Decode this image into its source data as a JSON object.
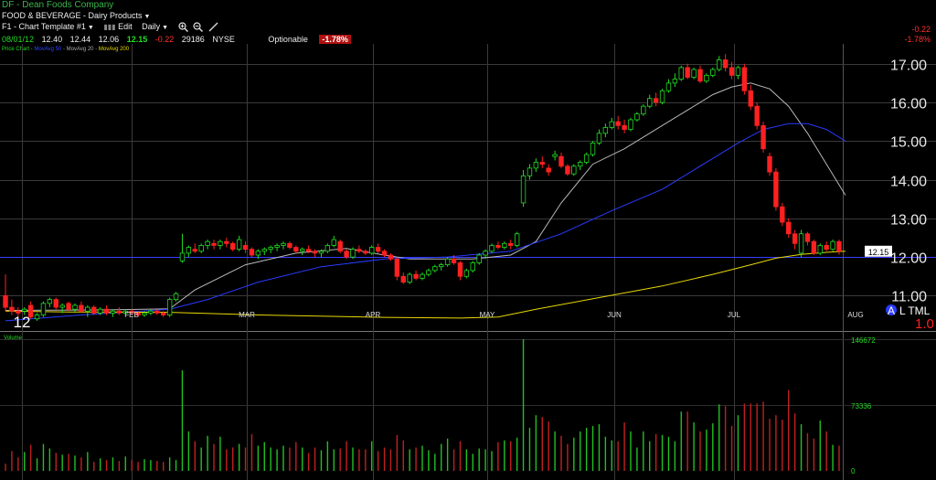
{
  "header": {
    "title": "DF - Dean Foods Company",
    "sector": "FOOD & BEVERAGE - Dairy Products",
    "toolbar": {
      "template": "F1 - Chart Template #1",
      "edit": "Edit",
      "period": "Daily"
    },
    "quote": {
      "date": "08/01/12",
      "open": "12.40",
      "high": "12.44",
      "low": "12.06",
      "last": "12.15",
      "change": "-0.22",
      "volume": "29186",
      "exchange": "NYSE",
      "optionable": "Optionable",
      "change_pct": "-1.78%"
    },
    "right_change": "-0.22",
    "right_change_pct": "-1.78%",
    "legend": {
      "price": "Price Chart -",
      "ma50": "MovAvg 50",
      "ma20": "MovAvg 20",
      "ma200": "MovAvg 200"
    }
  },
  "chart_data": [
    {
      "type": "candlestick",
      "y_ticks": [
        "17.00",
        "16.00",
        "15.00",
        "14.00",
        "13.00",
        "12.00",
        "11.00"
      ],
      "ylim": [
        10.3,
        17.2
      ],
      "x_labels": [
        "12",
        "FEB",
        "MAR",
        "APR",
        "MAY",
        "JUN",
        "JUL",
        "AUG"
      ],
      "last_price_label": "12.15",
      "reference_line": 12.0,
      "corner_labels": {
        "a": "A",
        "ltml": "L TML",
        "ratio": "1.0"
      },
      "ohlc": [
        [
          11.0,
          11.55,
          10.6,
          10.7
        ],
        [
          10.7,
          10.9,
          10.5,
          10.6
        ],
        [
          10.6,
          10.7,
          10.45,
          10.55
        ],
        [
          10.6,
          10.7,
          10.5,
          10.65
        ],
        [
          10.75,
          10.85,
          10.4,
          10.45
        ],
        [
          10.4,
          10.55,
          10.35,
          10.5
        ],
        [
          10.5,
          10.85,
          10.45,
          10.8
        ],
        [
          10.8,
          10.95,
          10.7,
          10.9
        ],
        [
          10.9,
          10.95,
          10.65,
          10.7
        ],
        [
          10.7,
          10.8,
          10.55,
          10.75
        ],
        [
          10.8,
          10.85,
          10.6,
          10.65
        ],
        [
          10.65,
          10.8,
          10.55,
          10.75
        ],
        [
          10.75,
          10.85,
          10.55,
          10.6
        ],
        [
          10.6,
          10.75,
          10.45,
          10.7
        ],
        [
          10.7,
          10.75,
          10.5,
          10.55
        ],
        [
          10.55,
          10.7,
          10.5,
          10.65
        ],
        [
          10.65,
          10.75,
          10.5,
          10.55
        ],
        [
          10.55,
          10.65,
          10.45,
          10.6
        ],
        [
          10.6,
          10.7,
          10.5,
          10.55
        ],
        [
          10.55,
          10.65,
          10.5,
          10.6
        ],
        [
          10.6,
          10.65,
          10.5,
          10.55
        ],
        [
          10.55,
          10.6,
          10.45,
          10.5
        ],
        [
          10.5,
          10.6,
          10.45,
          10.55
        ],
        [
          10.55,
          10.65,
          10.5,
          10.6
        ],
        [
          10.6,
          10.65,
          10.5,
          10.55
        ],
        [
          10.55,
          10.6,
          10.45,
          10.5
        ],
        [
          10.5,
          10.95,
          10.45,
          10.9
        ],
        [
          10.9,
          11.1,
          10.85,
          11.05
        ],
        [
          11.9,
          12.6,
          11.85,
          12.1
        ],
        [
          12.1,
          12.3,
          12.0,
          12.25
        ],
        [
          12.2,
          12.35,
          12.1,
          12.15
        ],
        [
          12.15,
          12.35,
          12.1,
          12.3
        ],
        [
          12.3,
          12.45,
          12.2,
          12.4
        ],
        [
          12.35,
          12.45,
          12.2,
          12.3
        ],
        [
          12.3,
          12.45,
          12.2,
          12.4
        ],
        [
          12.4,
          12.5,
          12.25,
          12.35
        ],
        [
          12.35,
          12.4,
          12.15,
          12.2
        ],
        [
          12.2,
          12.55,
          12.15,
          12.45
        ],
        [
          12.3,
          12.4,
          12.1,
          12.2
        ],
        [
          12.2,
          12.25,
          12.0,
          12.05
        ],
        [
          12.05,
          12.2,
          11.95,
          12.15
        ],
        [
          12.15,
          12.25,
          12.05,
          12.2
        ],
        [
          12.2,
          12.3,
          12.1,
          12.25
        ],
        [
          12.25,
          12.35,
          12.15,
          12.3
        ],
        [
          12.3,
          12.4,
          12.2,
          12.35
        ],
        [
          12.35,
          12.4,
          12.2,
          12.25
        ],
        [
          12.25,
          12.3,
          12.1,
          12.15
        ],
        [
          12.15,
          12.25,
          12.05,
          12.2
        ],
        [
          12.2,
          12.3,
          12.1,
          12.15
        ],
        [
          12.15,
          12.2,
          12.0,
          12.1
        ],
        [
          12.1,
          12.2,
          12.0,
          12.15
        ],
        [
          12.15,
          12.35,
          12.1,
          12.3
        ],
        [
          12.3,
          12.55,
          12.25,
          12.45
        ],
        [
          12.4,
          12.45,
          12.1,
          12.15
        ],
        [
          12.15,
          12.2,
          11.95,
          12.0
        ],
        [
          12.0,
          12.25,
          11.95,
          12.2
        ],
        [
          12.2,
          12.3,
          12.1,
          12.15
        ],
        [
          12.15,
          12.2,
          12.05,
          12.1
        ],
        [
          12.1,
          12.3,
          12.05,
          12.25
        ],
        [
          12.25,
          12.35,
          12.1,
          12.15
        ],
        [
          12.15,
          12.2,
          12.0,
          12.05
        ],
        [
          12.05,
          12.1,
          11.9,
          11.95
        ],
        [
          11.95,
          12.0,
          11.4,
          11.5
        ],
        [
          11.5,
          11.6,
          11.3,
          11.35
        ],
        [
          11.35,
          11.6,
          11.3,
          11.55
        ],
        [
          11.55,
          11.65,
          11.4,
          11.45
        ],
        [
          11.45,
          11.6,
          11.4,
          11.55
        ],
        [
          11.55,
          11.7,
          11.5,
          11.65
        ],
        [
          11.65,
          11.8,
          11.6,
          11.75
        ],
        [
          11.75,
          11.85,
          11.65,
          11.8
        ],
        [
          11.8,
          12.0,
          11.75,
          11.95
        ],
        [
          11.95,
          12.05,
          11.8,
          11.85
        ],
        [
          11.85,
          11.9,
          11.4,
          11.5
        ],
        [
          11.5,
          11.7,
          11.45,
          11.65
        ],
        [
          11.65,
          11.9,
          11.6,
          11.85
        ],
        [
          11.85,
          12.1,
          11.8,
          12.05
        ],
        [
          12.05,
          12.2,
          11.95,
          12.15
        ],
        [
          12.15,
          12.35,
          12.1,
          12.3
        ],
        [
          12.3,
          12.4,
          12.2,
          12.25
        ],
        [
          12.25,
          12.4,
          12.2,
          12.35
        ],
        [
          12.35,
          12.45,
          12.2,
          12.3
        ],
        [
          12.3,
          12.65,
          12.25,
          12.6
        ],
        [
          13.4,
          14.25,
          13.3,
          14.1
        ],
        [
          14.1,
          14.4,
          14.0,
          14.3
        ],
        [
          14.3,
          14.55,
          14.2,
          14.45
        ],
        [
          14.45,
          14.6,
          14.3,
          14.4
        ],
        [
          14.3,
          14.4,
          14.1,
          14.2
        ],
        [
          14.6,
          14.75,
          14.5,
          14.65
        ],
        [
          14.6,
          14.7,
          14.3,
          14.35
        ],
        [
          14.35,
          14.4,
          14.1,
          14.15
        ],
        [
          14.15,
          14.4,
          14.1,
          14.35
        ],
        [
          14.35,
          14.5,
          14.25,
          14.45
        ],
        [
          14.45,
          14.7,
          14.4,
          14.65
        ],
        [
          14.65,
          15.0,
          14.6,
          14.95
        ],
        [
          14.95,
          15.3,
          14.9,
          15.2
        ],
        [
          15.2,
          15.45,
          15.1,
          15.35
        ],
        [
          15.35,
          15.6,
          15.3,
          15.5
        ],
        [
          15.5,
          15.65,
          15.3,
          15.4
        ],
        [
          15.4,
          15.55,
          15.2,
          15.3
        ],
        [
          15.3,
          15.6,
          15.25,
          15.55
        ],
        [
          15.55,
          15.75,
          15.5,
          15.7
        ],
        [
          15.7,
          15.95,
          15.65,
          15.9
        ],
        [
          15.9,
          16.2,
          15.85,
          16.1
        ],
        [
          16.1,
          16.25,
          15.9,
          16.0
        ],
        [
          16.0,
          16.35,
          15.95,
          16.3
        ],
        [
          16.3,
          16.6,
          16.25,
          16.5
        ],
        [
          16.5,
          16.75,
          16.4,
          16.6
        ],
        [
          16.6,
          16.95,
          16.55,
          16.9
        ],
        [
          16.9,
          17.0,
          16.6,
          16.65
        ],
        [
          16.65,
          16.9,
          16.6,
          16.85
        ],
        [
          16.85,
          16.95,
          16.5,
          16.55
        ],
        [
          16.55,
          16.75,
          16.5,
          16.7
        ],
        [
          16.7,
          16.9,
          16.65,
          16.85
        ],
        [
          16.85,
          17.2,
          16.8,
          17.1
        ],
        [
          17.1,
          17.25,
          16.8,
          16.9
        ],
        [
          16.9,
          17.05,
          16.6,
          16.7
        ],
        [
          16.7,
          16.95,
          16.6,
          16.9
        ],
        [
          16.9,
          17.0,
          16.2,
          16.3
        ],
        [
          16.3,
          16.45,
          15.8,
          15.9
        ],
        [
          15.9,
          16.0,
          15.3,
          15.4
        ],
        [
          15.4,
          15.5,
          14.7,
          14.8
        ],
        [
          14.6,
          14.7,
          14.1,
          14.2
        ],
        [
          14.2,
          14.3,
          13.2,
          13.3
        ],
        [
          13.3,
          13.4,
          12.8,
          12.9
        ],
        [
          12.9,
          13.0,
          12.5,
          12.6
        ],
        [
          12.6,
          12.7,
          12.2,
          12.35
        ],
        [
          12.1,
          12.7,
          12.0,
          12.6
        ],
        [
          12.6,
          12.65,
          12.3,
          12.4
        ],
        [
          12.4,
          12.45,
          12.05,
          12.1
        ],
        [
          12.1,
          12.35,
          12.05,
          12.3
        ],
        [
          12.3,
          12.4,
          12.15,
          12.2
        ],
        [
          12.2,
          12.45,
          12.15,
          12.4
        ],
        [
          12.4,
          12.45,
          12.06,
          12.15
        ]
      ]
    },
    {
      "type": "line",
      "series": [
        {
          "name": "MovAvg 20",
          "color": "#b8b8b8",
          "values": [
            [
              0,
              10.62
            ],
            [
              15,
              10.63
            ],
            [
              26,
              10.66
            ],
            [
              30,
              11.15
            ],
            [
              38,
              11.8
            ],
            [
              46,
              12.1
            ],
            [
              54,
              12.22
            ],
            [
              60,
              12.05
            ],
            [
              64,
              11.95
            ],
            [
              74,
              11.95
            ],
            [
              80,
              12.05
            ],
            [
              84,
              12.4
            ],
            [
              88,
              13.4
            ],
            [
              93,
              14.4
            ],
            [
              98,
              14.8
            ],
            [
              104,
              15.4
            ],
            [
              108,
              15.8
            ],
            [
              112,
              16.2
            ],
            [
              115,
              16.4
            ],
            [
              118,
              16.5
            ],
            [
              121,
              16.35
            ],
            [
              124,
              15.9
            ],
            [
              127,
              15.2
            ],
            [
              130,
              14.4
            ],
            [
              133,
              13.6
            ]
          ]
        },
        {
          "name": "MovAvg 50",
          "color": "#2a3bff",
          "values": [
            [
              0,
              10.35
            ],
            [
              12,
              10.5
            ],
            [
              26,
              10.65
            ],
            [
              32,
              10.9
            ],
            [
              40,
              11.35
            ],
            [
              50,
              11.75
            ],
            [
              60,
              11.95
            ],
            [
              70,
              12.0
            ],
            [
              80,
              12.15
            ],
            [
              88,
              12.6
            ],
            [
              96,
              13.2
            ],
            [
              104,
              13.75
            ],
            [
              110,
              14.35
            ],
            [
              116,
              14.95
            ],
            [
              120,
              15.3
            ],
            [
              124,
              15.45
            ],
            [
              127,
              15.45
            ],
            [
              130,
              15.3
            ],
            [
              133,
              15.0
            ]
          ]
        },
        {
          "name": "MovAvg 200",
          "color": "#e8d800",
          "values": [
            [
              0,
              10.6
            ],
            [
              10,
              10.58
            ],
            [
              26,
              10.57
            ],
            [
              40,
              10.5
            ],
            [
              60,
              10.44
            ],
            [
              72,
              10.42
            ],
            [
              78,
              10.45
            ],
            [
              84,
              10.65
            ],
            [
              94,
              10.95
            ],
            [
              104,
              11.25
            ],
            [
              112,
              11.55
            ],
            [
              118,
              11.8
            ],
            [
              122,
              11.97
            ],
            [
              126,
              12.07
            ],
            [
              130,
              12.12
            ],
            [
              133,
              12.15
            ]
          ]
        }
      ]
    },
    {
      "type": "bar",
      "title": "Volume",
      "y_ticks": [
        "146672",
        "73336",
        "0"
      ],
      "ylim": [
        0,
        146672
      ],
      "values": [
        8000,
        22000,
        15000,
        21000,
        29000,
        14000,
        30000,
        25000,
        20000,
        18000,
        19000,
        17000,
        15000,
        21000,
        10000,
        14000,
        12000,
        15000,
        11000,
        16000,
        12000,
        10000,
        13000,
        12000,
        11000,
        10000,
        15000,
        12000,
        112000,
        44000,
        33000,
        26000,
        39000,
        30000,
        38000,
        24000,
        26000,
        30000,
        26000,
        41000,
        28000,
        32000,
        26000,
        24000,
        28000,
        26000,
        32000,
        26000,
        20000,
        26000,
        23000,
        33000,
        24000,
        25000,
        33000,
        26000,
        24000,
        24000,
        33000,
        22000,
        26000,
        24000,
        40000,
        34000,
        24000,
        26000,
        28000,
        23000,
        19000,
        30000,
        36000,
        24000,
        33000,
        24000,
        19000,
        25000,
        24000,
        22000,
        32000,
        34000,
        33000,
        37000,
        146672,
        48000,
        62000,
        60000,
        55000,
        44000,
        39000,
        30000,
        37000,
        44000,
        48000,
        50000,
        52000,
        38000,
        34000,
        33000,
        54000,
        44000,
        26000,
        44000,
        33000,
        41000,
        40000,
        38000,
        33000,
        66000,
        66000,
        54000,
        44000,
        46000,
        53000,
        74000,
        72000,
        50000,
        62000,
        75000,
        75000,
        75000,
        77000,
        58000,
        62000,
        57000,
        90000,
        64000,
        52000,
        42000,
        36000,
        56000,
        44000,
        29000,
        28000
      ]
    }
  ]
}
